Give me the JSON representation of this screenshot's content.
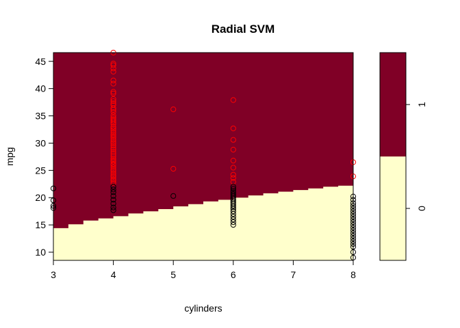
{
  "chart_data": {
    "type": "scatter",
    "title": "Radial SVM",
    "xlabel": "cylinders",
    "ylabel": "mpg",
    "xlim": [
      3,
      8
    ],
    "ylim": [
      8.5,
      46.6
    ],
    "x_ticks": [
      "3",
      "4",
      "5",
      "6",
      "7",
      "8"
    ],
    "y_ticks": [
      "10",
      "15",
      "20",
      "25",
      "30",
      "35",
      "40",
      "45"
    ],
    "region_colors": {
      "0": "#FFFFCC",
      "1": "#800026"
    },
    "decision_boundary": {
      "x": [
        3.0,
        3.25,
        3.5,
        3.75,
        4.0,
        4.25,
        4.5,
        4.75,
        5.0,
        5.25,
        5.5,
        5.75,
        6.0,
        6.25,
        6.5,
        6.75,
        7.0,
        7.25,
        7.5,
        7.75,
        8.0
      ],
      "y": [
        14.4,
        15.1,
        15.8,
        16.2,
        16.6,
        17.1,
        17.5,
        17.9,
        18.4,
        18.8,
        19.3,
        19.6,
        20.0,
        20.4,
        20.8,
        21.1,
        21.4,
        21.7,
        22.0,
        22.2,
        22.4
      ]
    },
    "series": [
      {
        "name": "1",
        "color": "#FF0000",
        "points": [
          [
            4,
            46.6
          ],
          [
            4,
            44.6
          ],
          [
            4,
            44.3
          ],
          [
            4,
            43.7
          ],
          [
            4,
            43.1
          ],
          [
            4,
            41.5
          ],
          [
            4,
            40.9
          ],
          [
            4,
            39.4
          ],
          [
            4,
            39.1
          ],
          [
            4,
            38.1
          ],
          [
            4,
            37.7
          ],
          [
            4,
            37.3
          ],
          [
            4,
            37.0
          ],
          [
            4,
            36.4
          ],
          [
            4,
            36.1
          ],
          [
            4,
            35.7
          ],
          [
            4,
            35.1
          ],
          [
            4,
            34.7
          ],
          [
            4,
            34.4
          ],
          [
            4,
            34.1
          ],
          [
            4,
            33.8
          ],
          [
            4,
            33.5
          ],
          [
            4,
            33.0
          ],
          [
            4,
            32.7
          ],
          [
            4,
            32.4
          ],
          [
            4,
            32.0
          ],
          [
            4,
            31.6
          ],
          [
            4,
            31.3
          ],
          [
            4,
            31.0
          ],
          [
            4,
            30.6
          ],
          [
            4,
            30.2
          ],
          [
            4,
            29.9
          ],
          [
            4,
            29.5
          ],
          [
            4,
            29.1
          ],
          [
            4,
            28.8
          ],
          [
            4,
            28.4
          ],
          [
            4,
            28.0
          ],
          [
            4,
            27.6
          ],
          [
            4,
            27.2
          ],
          [
            4,
            26.9
          ],
          [
            4,
            26.6
          ],
          [
            4,
            26.2
          ],
          [
            4,
            26.0
          ],
          [
            4,
            25.6
          ],
          [
            4,
            25.2
          ],
          [
            4,
            24.9
          ],
          [
            4,
            24.5
          ],
          [
            4,
            24.1
          ],
          [
            4,
            23.8
          ],
          [
            4,
            23.4
          ],
          [
            4,
            23.1
          ],
          [
            4,
            22.7
          ],
          [
            5,
            36.2
          ],
          [
            5,
            25.3
          ],
          [
            6,
            37.9
          ],
          [
            6,
            32.7
          ],
          [
            6,
            30.6
          ],
          [
            6,
            28.8
          ],
          [
            6,
            26.8
          ],
          [
            6,
            25.5
          ],
          [
            6,
            24.2
          ],
          [
            6,
            23.6
          ],
          [
            6,
            22.9
          ],
          [
            8,
            26.5
          ],
          [
            8,
            23.9
          ]
        ]
      },
      {
        "name": "0",
        "color": "#000000",
        "points": [
          [
            3,
            21.7
          ],
          [
            3,
            19.5
          ],
          [
            3,
            18.5
          ],
          [
            3,
            18.1
          ],
          [
            4,
            22.0
          ],
          [
            4,
            21.5
          ],
          [
            4,
            21.0
          ],
          [
            4,
            20.3
          ],
          [
            4,
            19.6
          ],
          [
            4,
            18.9
          ],
          [
            4,
            18.2
          ],
          [
            4,
            17.7
          ],
          [
            5,
            20.3
          ],
          [
            6,
            22.0
          ],
          [
            6,
            21.6
          ],
          [
            6,
            21.2
          ],
          [
            6,
            20.9
          ],
          [
            6,
            20.6
          ],
          [
            6,
            20.3
          ],
          [
            6,
            20.0
          ],
          [
            6,
            19.7
          ],
          [
            6,
            19.4
          ],
          [
            6,
            19.1
          ],
          [
            6,
            18.8
          ],
          [
            6,
            18.5
          ],
          [
            6,
            18.2
          ],
          [
            6,
            17.9
          ],
          [
            6,
            17.5
          ],
          [
            6,
            17.0
          ],
          [
            6,
            16.5
          ],
          [
            6,
            16.0
          ],
          [
            6,
            15.5
          ],
          [
            6,
            15.0
          ],
          [
            8,
            20.2
          ],
          [
            8,
            19.6
          ],
          [
            8,
            19.0
          ],
          [
            8,
            18.5
          ],
          [
            8,
            18.0
          ],
          [
            8,
            17.5
          ],
          [
            8,
            17.0
          ],
          [
            8,
            16.5
          ],
          [
            8,
            16.0
          ],
          [
            8,
            15.5
          ],
          [
            8,
            15.0
          ],
          [
            8,
            14.5
          ],
          [
            8,
            14.0
          ],
          [
            8,
            13.5
          ],
          [
            8,
            13.0
          ],
          [
            8,
            12.5
          ],
          [
            8,
            12.0
          ],
          [
            8,
            11.5
          ],
          [
            8,
            11.0
          ],
          [
            8,
            10.0
          ],
          [
            8,
            9.0
          ]
        ]
      }
    ],
    "legend": {
      "placement": "right",
      "levels": [
        "0",
        "1"
      ],
      "split_value": 0.5,
      "range": [
        -0.5,
        1.5
      ]
    }
  }
}
